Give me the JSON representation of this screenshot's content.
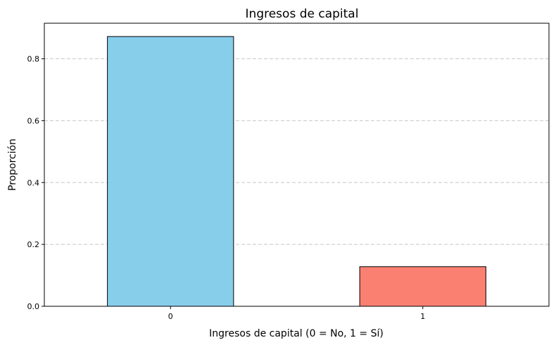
{
  "chart_data": {
    "type": "bar",
    "title": "Ingresos de capital",
    "xlabel": "Ingresos de capital (0 = No, 1 = Sí)",
    "ylabel": "Proporción",
    "categories": [
      "0",
      "1"
    ],
    "values": [
      0.872,
      0.128
    ],
    "colors": [
      "#87ceeb",
      "#fa8072"
    ],
    "edge_color": "#000000",
    "ylim": [
      0,
      0.915
    ],
    "yticks": [
      0.0,
      0.2,
      0.4,
      0.6,
      0.8
    ],
    "ytick_labels": [
      "0.0",
      "0.2",
      "0.4",
      "0.6",
      "0.8"
    ],
    "grid": "y-dashed",
    "grid_color": "#c8c8c8"
  }
}
